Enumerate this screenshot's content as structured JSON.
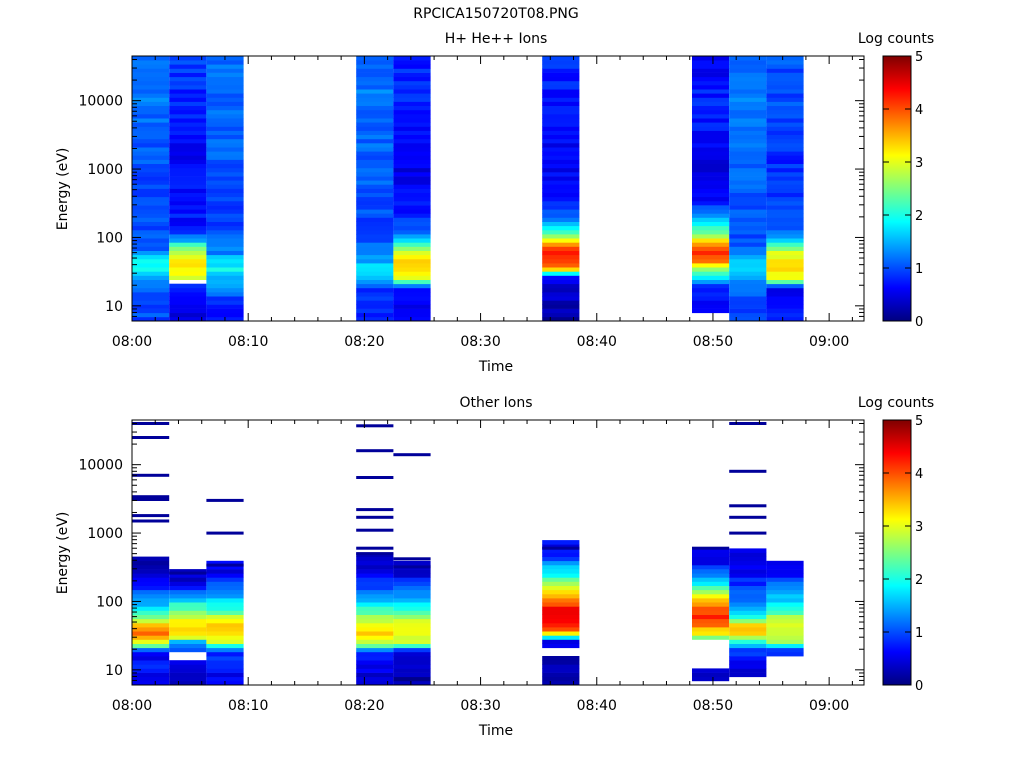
{
  "figure_title": "RPCICA150720T08.PNG",
  "chart_data": [
    {
      "type": "heatmap",
      "title": "H+ He++ Ions",
      "xlabel": "Time",
      "ylabel": "Energy (eV)",
      "x_ticks": [
        "08:00",
        "08:10",
        "08:20",
        "08:30",
        "08:40",
        "08:50",
        "09:00"
      ],
      "x_range_minutes": [
        0,
        63
      ],
      "y_scale": "log",
      "y_ticks": [
        "10",
        "100",
        "1000",
        "10000"
      ],
      "y_range": [
        6,
        45000
      ],
      "colorbar": {
        "label": "Log counts",
        "ticks": [
          "0",
          "1",
          "2",
          "3",
          "4",
          "5"
        ],
        "range": [
          0,
          5
        ],
        "colormap": "jet"
      },
      "grid": false,
      "columns": [
        {
          "t_start": 0.0,
          "t_end": 3.2,
          "profile": [
            [
              8,
              1.0
            ],
            [
              12,
              0.9
            ],
            [
              18,
              1.1
            ],
            [
              25,
              1.3
            ],
            [
              35,
              1.9
            ],
            [
              45,
              2.0
            ],
            [
              60,
              1.3
            ],
            [
              80,
              1.0
            ],
            [
              150,
              1.0
            ],
            [
              400,
              0.9
            ],
            [
              1000,
              1.0
            ],
            [
              3000,
              1.1
            ],
            [
              10000,
              1.2
            ],
            [
              30000,
              1.2
            ]
          ]
        },
        {
          "t_start": 3.2,
          "t_end": 6.4,
          "profile": [
            [
              8,
              0.4
            ],
            [
              12,
              0.6
            ],
            [
              18,
              0.7
            ],
            [
              22,
              -1
            ],
            [
              25,
              2.9
            ],
            [
              35,
              3.2
            ],
            [
              45,
              3.3
            ],
            [
              60,
              2.8
            ],
            [
              80,
              2.0
            ],
            [
              100,
              1.2
            ],
            [
              150,
              0.7
            ],
            [
              400,
              0.7
            ],
            [
              1000,
              0.6
            ],
            [
              3000,
              0.7
            ],
            [
              10000,
              0.8
            ],
            [
              30000,
              0.9
            ]
          ]
        },
        {
          "t_start": 6.4,
          "t_end": 9.6,
          "profile": [
            [
              8,
              0.7
            ],
            [
              12,
              0.9
            ],
            [
              18,
              1.3
            ],
            [
              25,
              1.6
            ],
            [
              35,
              1.9
            ],
            [
              45,
              1.7
            ],
            [
              60,
              1.3
            ],
            [
              80,
              1.1
            ],
            [
              150,
              0.9
            ],
            [
              400,
              0.9
            ],
            [
              1000,
              1.0
            ],
            [
              3000,
              1.1
            ],
            [
              10000,
              1.1
            ],
            [
              30000,
              1.2
            ]
          ]
        },
        {
          "t_start": 19.3,
          "t_end": 22.5,
          "profile": [
            [
              8,
              0.8
            ],
            [
              12,
              0.9
            ],
            [
              18,
              0.9
            ],
            [
              25,
              1.4
            ],
            [
              35,
              1.7
            ],
            [
              45,
              1.5
            ],
            [
              60,
              1.2
            ],
            [
              80,
              1.1
            ],
            [
              150,
              1.0
            ],
            [
              400,
              1.0
            ],
            [
              1000,
              1.1
            ],
            [
              3000,
              1.1
            ],
            [
              10000,
              1.2
            ],
            [
              30000,
              1.2
            ]
          ]
        },
        {
          "t_start": 22.5,
          "t_end": 25.7,
          "profile": [
            [
              8,
              0.5
            ],
            [
              12,
              0.5
            ],
            [
              18,
              0.6
            ],
            [
              25,
              3.0
            ],
            [
              35,
              3.3
            ],
            [
              45,
              3.3
            ],
            [
              60,
              2.9
            ],
            [
              80,
              2.0
            ],
            [
              100,
              1.3
            ],
            [
              150,
              0.9
            ],
            [
              400,
              0.6
            ],
            [
              1000,
              0.5
            ],
            [
              3000,
              0.6
            ],
            [
              10000,
              0.8
            ],
            [
              30000,
              0.8
            ]
          ]
        },
        {
          "t_start": 35.3,
          "t_end": 38.5,
          "profile": [
            [
              8,
              0.2
            ],
            [
              12,
              0.3
            ],
            [
              18,
              0.4
            ],
            [
              25,
              0.6
            ],
            [
              30,
              1.8
            ],
            [
              35,
              3.5
            ],
            [
              45,
              4.2
            ],
            [
              60,
              4.2
            ],
            [
              80,
              3.6
            ],
            [
              110,
              2.3
            ],
            [
              150,
              1.6
            ],
            [
              250,
              1.0
            ],
            [
              500,
              0.6
            ],
            [
              1000,
              0.6
            ],
            [
              3000,
              0.6
            ],
            [
              10000,
              0.7
            ],
            [
              30000,
              0.8
            ]
          ]
        },
        {
          "t_start": 48.2,
          "t_end": 51.4,
          "profile": [
            [
              10,
              0.7
            ],
            [
              15,
              0.8
            ],
            [
              20,
              0.9
            ],
            [
              25,
              1.8
            ],
            [
              35,
              2.8
            ],
            [
              45,
              3.8
            ],
            [
              60,
              4.1
            ],
            [
              80,
              3.6
            ],
            [
              120,
              2.3
            ],
            [
              200,
              1.3
            ],
            [
              400,
              0.6
            ],
            [
              1000,
              0.5
            ],
            [
              3000,
              0.7
            ],
            [
              10000,
              0.8
            ],
            [
              30000,
              0.6
            ]
          ]
        },
        {
          "t_start": 51.4,
          "t_end": 54.6,
          "profile": [
            [
              8,
              0.9
            ],
            [
              12,
              1.0
            ],
            [
              18,
              1.1
            ],
            [
              25,
              1.3
            ],
            [
              35,
              1.6
            ],
            [
              45,
              1.5
            ],
            [
              60,
              1.3
            ],
            [
              80,
              1.0
            ],
            [
              150,
              1.0
            ],
            [
              400,
              1.1
            ],
            [
              1000,
              1.1
            ],
            [
              3000,
              1.2
            ],
            [
              10000,
              1.2
            ],
            [
              30000,
              1.2
            ]
          ]
        },
        {
          "t_start": 54.6,
          "t_end": 57.8,
          "profile": [
            [
              8,
              0.7
            ],
            [
              12,
              0.7
            ],
            [
              18,
              0.6
            ],
            [
              25,
              3.1
            ],
            [
              35,
              3.3
            ],
            [
              45,
              3.3
            ],
            [
              60,
              2.9
            ],
            [
              80,
              2.2
            ],
            [
              100,
              1.5
            ],
            [
              150,
              1.0
            ],
            [
              400,
              0.9
            ],
            [
              1000,
              0.8
            ],
            [
              3000,
              0.9
            ],
            [
              10000,
              1.0
            ],
            [
              30000,
              1.0
            ]
          ]
        }
      ]
    },
    {
      "type": "heatmap",
      "title": "Other Ions",
      "xlabel": "Time",
      "ylabel": "Energy (eV)",
      "x_ticks": [
        "08:00",
        "08:10",
        "08:20",
        "08:30",
        "08:40",
        "08:50",
        "09:00"
      ],
      "x_range_minutes": [
        0,
        63
      ],
      "y_scale": "log",
      "y_ticks": [
        "10",
        "100",
        "1000",
        "10000"
      ],
      "y_range": [
        6,
        45000
      ],
      "colorbar": {
        "label": "Log counts",
        "ticks": [
          "0",
          "1",
          "2",
          "3",
          "4",
          "5"
        ],
        "range": [
          0,
          5
        ],
        "colormap": "jet"
      },
      "grid": false,
      "columns": [
        {
          "t_start": 0.0,
          "t_end": 3.2,
          "profile": [
            [
              8,
              0.5
            ],
            [
              12,
              0.9
            ],
            [
              18,
              0.4
            ],
            [
              25,
              3.0
            ],
            [
              35,
              3.8
            ],
            [
              45,
              3.4
            ],
            [
              60,
              2.5
            ],
            [
              80,
              1.8
            ],
            [
              120,
              1.2
            ],
            [
              200,
              0.6
            ],
            [
              300,
              0.3
            ]
          ],
          "sparse": [
            1500,
            1800,
            3100,
            3400,
            7000,
            25000,
            40000
          ]
        },
        {
          "t_start": 3.2,
          "t_end": 6.4,
          "profile": [
            [
              8,
              0.3
            ],
            [
              12,
              0.5
            ],
            [
              15,
              -1
            ],
            [
              20,
              0.9
            ],
            [
              25,
              1.2
            ],
            [
              30,
              2.9
            ],
            [
              40,
              3.3
            ],
            [
              55,
              3.1
            ],
            [
              75,
              2.5
            ],
            [
              110,
              1.6
            ],
            [
              160,
              0.8
            ],
            [
              200,
              0.4
            ]
          ],
          "sparse": [
            260
          ]
        },
        {
          "t_start": 6.4,
          "t_end": 9.6,
          "profile": [
            [
              8,
              0.6
            ],
            [
              12,
              0.7
            ],
            [
              18,
              0.9
            ],
            [
              25,
              2.7
            ],
            [
              35,
              3.4
            ],
            [
              45,
              3.3
            ],
            [
              60,
              2.8
            ],
            [
              80,
              2.1
            ],
            [
              120,
              1.5
            ],
            [
              200,
              0.9
            ],
            [
              250,
              0.5
            ]
          ],
          "sparse": [
            340,
            1000,
            3000
          ]
        },
        {
          "t_start": 19.3,
          "t_end": 22.5,
          "profile": [
            [
              8,
              0.4
            ],
            [
              12,
              0.6
            ],
            [
              18,
              0.8
            ],
            [
              25,
              2.8
            ],
            [
              35,
              3.4
            ],
            [
              45,
              3.2
            ],
            [
              60,
              2.6
            ],
            [
              80,
              2.0
            ],
            [
              120,
              1.4
            ],
            [
              200,
              0.8
            ],
            [
              350,
              0.4
            ]
          ],
          "sparse": [
            500,
            600,
            1100,
            1700,
            2200,
            6500,
            16000,
            37000
          ]
        },
        {
          "t_start": 22.5,
          "t_end": 25.7,
          "profile": [
            [
              8,
              0.2
            ],
            [
              12,
              0.3
            ],
            [
              18,
              0.3
            ],
            [
              25,
              2.9
            ],
            [
              35,
              3.2
            ],
            [
              45,
              3.2
            ],
            [
              60,
              2.7
            ],
            [
              80,
              2.0
            ],
            [
              120,
              1.4
            ],
            [
              200,
              0.8
            ],
            [
              250,
              0.4
            ]
          ],
          "sparse": [
            320,
            420,
            14000
          ]
        },
        {
          "t_start": 35.3,
          "t_end": 38.5,
          "profile": [
            [
              8,
              0.2
            ],
            [
              14,
              0.2
            ],
            [
              16,
              -1
            ],
            [
              28,
              0.4
            ],
            [
              32,
              3.0
            ],
            [
              40,
              3.9
            ],
            [
              55,
              4.4
            ],
            [
              75,
              4.4
            ],
            [
              100,
              3.9
            ],
            [
              150,
              3.0
            ],
            [
              250,
              2.0
            ],
            [
              400,
              1.2
            ],
            [
              500,
              0.6
            ]
          ],
          "sparse": [
            600
          ]
        },
        {
          "t_start": 48.2,
          "t_end": 51.4,
          "profile": [
            [
              9,
              0.3
            ],
            [
              11,
              -1
            ],
            [
              25,
              -1
            ],
            [
              28,
              2.0
            ],
            [
              35,
              3.2
            ],
            [
              45,
              3.8
            ],
            [
              60,
              4.2
            ],
            [
              80,
              4.0
            ],
            [
              110,
              3.4
            ],
            [
              160,
              2.3
            ],
            [
              250,
              1.2
            ],
            [
              400,
              0.5
            ]
          ],
          "sparse": [
            600
          ]
        },
        {
          "t_start": 51.4,
          "t_end": 54.6,
          "profile": [
            [
              10,
              0.5
            ],
            [
              15,
              0.8
            ],
            [
              20,
              1.0
            ],
            [
              25,
              1.7
            ],
            [
              35,
              3.6
            ],
            [
              45,
              3.3
            ],
            [
              60,
              2.0
            ],
            [
              80,
              1.5
            ],
            [
              120,
              1.2
            ],
            [
              200,
              0.8
            ],
            [
              400,
              0.4
            ]
          ],
          "sparse": [
            1000,
            1700,
            2500,
            8000,
            40000
          ]
        },
        {
          "t_start": 54.6,
          "t_end": 57.8,
          "profile": [
            [
              20,
              1.0
            ],
            [
              25,
              2.7
            ],
            [
              35,
              3.0
            ],
            [
              45,
              3.1
            ],
            [
              60,
              2.6
            ],
            [
              80,
              2.0
            ],
            [
              120,
              1.5
            ],
            [
              200,
              1.0
            ],
            [
              260,
              0.6
            ]
          ]
        }
      ]
    }
  ]
}
